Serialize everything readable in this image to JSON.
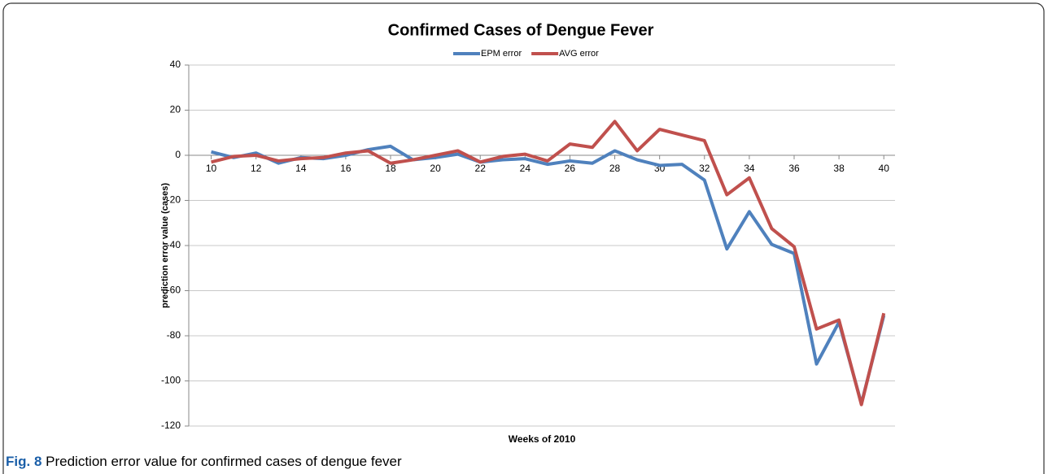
{
  "chart_data": {
    "type": "line",
    "title": "Confirmed Cases of Dengue Fever",
    "x_label": "Weeks of 2010",
    "y_label": "prediction error value (cases)",
    "x": [
      10,
      11,
      12,
      13,
      14,
      15,
      16,
      17,
      18,
      19,
      20,
      21,
      22,
      23,
      24,
      25,
      26,
      27,
      28,
      29,
      30,
      31,
      32,
      33,
      34,
      35,
      36,
      37,
      38,
      39,
      40
    ],
    "series": [
      {
        "name": "EPM error",
        "color": "#4f81bd",
        "values": [
          1.5,
          -1,
          1,
          -3.5,
          -1,
          -1.5,
          0,
          2.5,
          4,
          -2,
          -1,
          0.5,
          -3,
          -2,
          -1.5,
          -4,
          -2.5,
          -3.5,
          2,
          -2,
          -4.5,
          -4,
          -11,
          -41.5,
          -25,
          -39.5,
          -43.5,
          -92.5,
          -74,
          -110,
          -71
        ]
      },
      {
        "name": "AVG error",
        "color": "#c0504d",
        "values": [
          -3,
          -0.5,
          0,
          -2.5,
          -1.5,
          -1,
          1,
          2,
          -3.5,
          -2,
          0,
          2,
          -3,
          -0.5,
          0.5,
          -2.5,
          5,
          3.5,
          15,
          2,
          11.5,
          9,
          6.5,
          -17.5,
          -10,
          -32.5,
          -40.5,
          -77,
          -73,
          -110.5,
          -70
        ]
      }
    ],
    "xlim": [
      9,
      40.5
    ],
    "xticks": [
      10,
      12,
      14,
      16,
      18,
      20,
      22,
      24,
      26,
      28,
      30,
      32,
      34,
      36,
      38,
      40
    ],
    "ylim": [
      -120,
      40
    ],
    "yticks": [
      -120,
      -100,
      -80,
      -60,
      -40,
      -20,
      0,
      20,
      40
    ],
    "grid": true,
    "legend": "top"
  },
  "caption": {
    "label": "Fig. 8",
    "text": "Prediction error value for confirmed cases of dengue fever"
  }
}
